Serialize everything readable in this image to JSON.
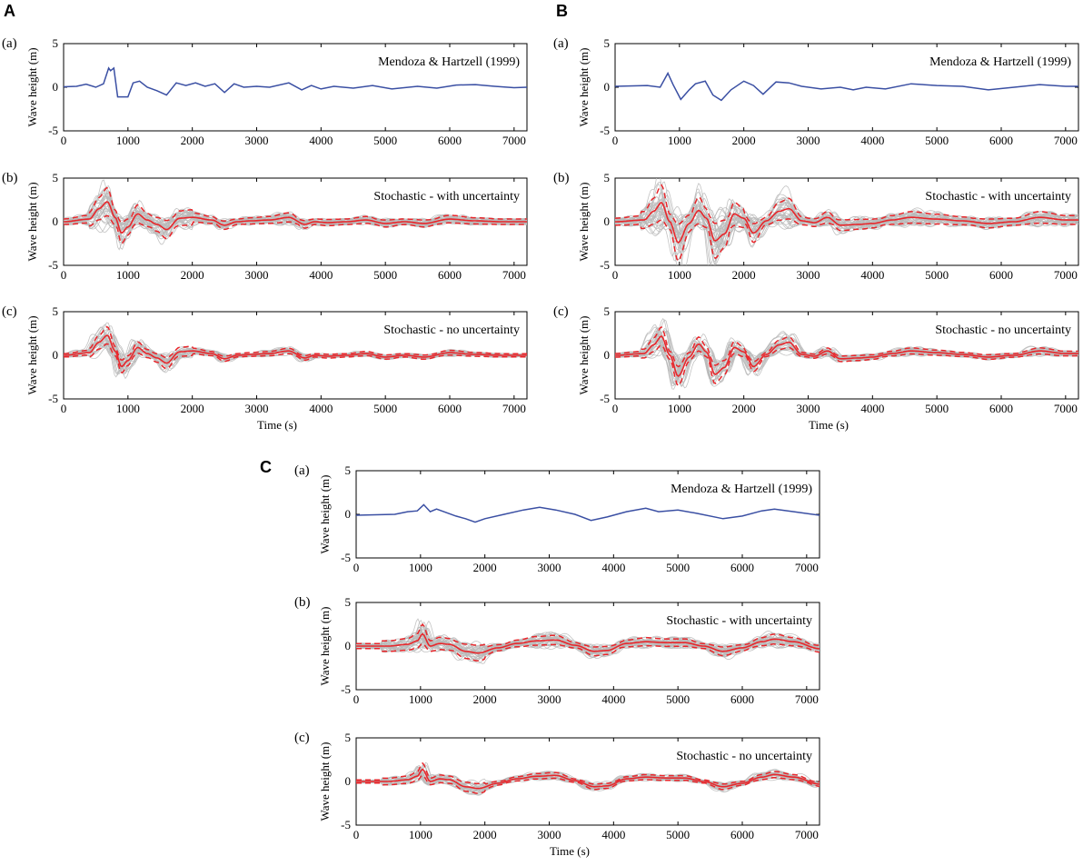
{
  "figure": {
    "panels": [
      {
        "letter": "A"
      },
      {
        "letter": "B"
      },
      {
        "letter": "C"
      }
    ],
    "rows": [
      {
        "label": "(a)",
        "legend": "Mendoza & Hartzell (1999)"
      },
      {
        "label": "(b)",
        "legend": "Stochastic - with uncertainty"
      },
      {
        "label": "(c)",
        "legend": "Stochastic - no uncertainty"
      }
    ],
    "colors": {
      "observed": "#3a4fa3",
      "mean": "#e8262b",
      "ensemble": "#b9b9b9"
    }
  },
  "chart_data": {
    "type": "line",
    "xlabel": "Time (s)",
    "ylabel": "Wave height (m)",
    "xlim": [
      0,
      7200
    ],
    "ylim": [
      -5,
      5
    ],
    "xticks": [
      0,
      1000,
      2000,
      3000,
      4000,
      5000,
      6000,
      7000
    ],
    "yticks": [
      5,
      0,
      -5
    ],
    "grid": false,
    "series_description": {
      "a": "single deterministic waveform (Mendoza & Hartzell 1999)",
      "b": "ensemble of stochastic realizations (grey) with mean (solid red) and mean ± 1 sd (dashed red)",
      "c": "ensemble of stochastic realizations (grey) with mean (solid red) and mean ± 1 sd (dashed red)"
    },
    "panels": {
      "A": {
        "a_keypoints": [
          [
            0,
            0.05
          ],
          [
            200,
            0.1
          ],
          [
            350,
            0.35
          ],
          [
            500,
            0.0
          ],
          [
            620,
            0.4
          ],
          [
            700,
            2.2
          ],
          [
            730,
            1.9
          ],
          [
            780,
            2.2
          ],
          [
            840,
            -1.1
          ],
          [
            900,
            -1.1
          ],
          [
            1000,
            -1.1
          ],
          [
            1080,
            0.5
          ],
          [
            1180,
            0.7
          ],
          [
            1300,
            0.0
          ],
          [
            1450,
            -0.4
          ],
          [
            1600,
            -0.9
          ],
          [
            1750,
            0.5
          ],
          [
            1900,
            0.2
          ],
          [
            2050,
            0.5
          ],
          [
            2200,
            0.1
          ],
          [
            2350,
            0.4
          ],
          [
            2500,
            -0.6
          ],
          [
            2650,
            0.4
          ],
          [
            2800,
            0.0
          ],
          [
            3000,
            0.1
          ],
          [
            3200,
            0.0
          ],
          [
            3500,
            0.5
          ],
          [
            3700,
            -0.3
          ],
          [
            3850,
            0.2
          ],
          [
            4000,
            -0.2
          ],
          [
            4200,
            0.1
          ],
          [
            4500,
            -0.1
          ],
          [
            4800,
            0.2
          ],
          [
            5100,
            -0.2
          ],
          [
            5500,
            0.1
          ],
          [
            5800,
            -0.1
          ],
          [
            6100,
            0.25
          ],
          [
            6400,
            0.3
          ],
          [
            6700,
            0.1
          ],
          [
            7000,
            -0.05
          ],
          [
            7200,
            0.0
          ]
        ],
        "mean_keypoints": [
          [
            0,
            0.0
          ],
          [
            400,
            0.3
          ],
          [
            550,
            1.5
          ],
          [
            680,
            2.3
          ],
          [
            800,
            0.5
          ],
          [
            900,
            -1.3
          ],
          [
            1000,
            -0.6
          ],
          [
            1150,
            0.9
          ],
          [
            1300,
            0.2
          ],
          [
            1450,
            -0.3
          ],
          [
            1600,
            -0.9
          ],
          [
            1800,
            0.4
          ],
          [
            2000,
            0.5
          ],
          [
            2300,
            0.2
          ],
          [
            2500,
            -0.4
          ],
          [
            2700,
            0.0
          ],
          [
            2900,
            0.1
          ],
          [
            3200,
            0.2
          ],
          [
            3500,
            0.5
          ],
          [
            3750,
            -0.3
          ],
          [
            3900,
            0.0
          ],
          [
            4100,
            -0.1
          ],
          [
            4400,
            0.0
          ],
          [
            4700,
            0.2
          ],
          [
            5000,
            -0.2
          ],
          [
            5300,
            0.0
          ],
          [
            5600,
            -0.2
          ],
          [
            6000,
            0.3
          ],
          [
            6400,
            0.1
          ],
          [
            6800,
            0.0
          ],
          [
            7200,
            0.0
          ]
        ],
        "b_sd": 0.9,
        "c_sd": 0.55
      },
      "B": {
        "a_keypoints": [
          [
            0,
            0.1
          ],
          [
            500,
            0.2
          ],
          [
            700,
            0.0
          ],
          [
            820,
            1.6
          ],
          [
            900,
            0.3
          ],
          [
            1020,
            -1.4
          ],
          [
            1150,
            -0.3
          ],
          [
            1250,
            0.4
          ],
          [
            1400,
            0.7
          ],
          [
            1520,
            -0.9
          ],
          [
            1650,
            -1.5
          ],
          [
            1800,
            -0.3
          ],
          [
            2000,
            0.7
          ],
          [
            2150,
            0.2
          ],
          [
            2300,
            -0.8
          ],
          [
            2500,
            0.6
          ],
          [
            2700,
            0.5
          ],
          [
            2900,
            0.1
          ],
          [
            3200,
            -0.2
          ],
          [
            3500,
            0.0
          ],
          [
            3700,
            -0.3
          ],
          [
            3900,
            0.0
          ],
          [
            4200,
            -0.2
          ],
          [
            4600,
            0.4
          ],
          [
            5000,
            0.2
          ],
          [
            5400,
            0.1
          ],
          [
            5800,
            -0.3
          ],
          [
            6200,
            0.0
          ],
          [
            6600,
            0.3
          ],
          [
            7000,
            0.1
          ],
          [
            7200,
            0.1
          ]
        ],
        "mean_keypoints": [
          [
            0,
            0.0
          ],
          [
            450,
            0.2
          ],
          [
            600,
            1.2
          ],
          [
            720,
            2.2
          ],
          [
            850,
            0.0
          ],
          [
            980,
            -2.4
          ],
          [
            1150,
            -0.2
          ],
          [
            1300,
            1.3
          ],
          [
            1420,
            0.4
          ],
          [
            1550,
            -2.2
          ],
          [
            1700,
            -1.4
          ],
          [
            1850,
            0.9
          ],
          [
            2000,
            0.4
          ],
          [
            2150,
            -1.3
          ],
          [
            2350,
            0.1
          ],
          [
            2550,
            1.2
          ],
          [
            2700,
            1.5
          ],
          [
            2900,
            0.1
          ],
          [
            3100,
            -0.1
          ],
          [
            3300,
            0.5
          ],
          [
            3500,
            -0.4
          ],
          [
            3800,
            -0.3
          ],
          [
            4000,
            -0.2
          ],
          [
            4300,
            0.2
          ],
          [
            4600,
            0.5
          ],
          [
            5000,
            0.3
          ],
          [
            5400,
            0.1
          ],
          [
            5800,
            -0.2
          ],
          [
            6200,
            0.0
          ],
          [
            6600,
            0.5
          ],
          [
            7000,
            0.2
          ],
          [
            7200,
            0.2
          ]
        ],
        "b_sd": 1.15,
        "c_sd": 0.6
      },
      "C": {
        "a_keypoints": [
          [
            0,
            -0.1
          ],
          [
            600,
            0.0
          ],
          [
            800,
            0.3
          ],
          [
            950,
            0.4
          ],
          [
            1050,
            1.1
          ],
          [
            1150,
            0.3
          ],
          [
            1250,
            0.6
          ],
          [
            1400,
            0.2
          ],
          [
            1550,
            -0.2
          ],
          [
            1700,
            -0.5
          ],
          [
            1850,
            -0.9
          ],
          [
            2000,
            -0.5
          ],
          [
            2300,
            0.0
          ],
          [
            2600,
            0.5
          ],
          [
            2850,
            0.8
          ],
          [
            3100,
            0.5
          ],
          [
            3400,
            0.0
          ],
          [
            3650,
            -0.7
          ],
          [
            3900,
            -0.3
          ],
          [
            4200,
            0.3
          ],
          [
            4500,
            0.7
          ],
          [
            4700,
            0.3
          ],
          [
            5000,
            0.5
          ],
          [
            5300,
            0.1
          ],
          [
            5700,
            -0.5
          ],
          [
            6000,
            -0.2
          ],
          [
            6300,
            0.4
          ],
          [
            6500,
            0.6
          ],
          [
            6800,
            0.3
          ],
          [
            7200,
            -0.1
          ]
        ],
        "mean_keypoints": [
          [
            0,
            0.0
          ],
          [
            500,
            0.0
          ],
          [
            800,
            0.2
          ],
          [
            950,
            0.6
          ],
          [
            1030,
            1.4
          ],
          [
            1150,
            0.0
          ],
          [
            1300,
            0.3
          ],
          [
            1450,
            0.2
          ],
          [
            1700,
            -0.6
          ],
          [
            1900,
            -0.8
          ],
          [
            2200,
            -0.2
          ],
          [
            2500,
            0.3
          ],
          [
            2800,
            0.6
          ],
          [
            3100,
            0.7
          ],
          [
            3400,
            0.1
          ],
          [
            3700,
            -0.6
          ],
          [
            3900,
            -0.5
          ],
          [
            4200,
            0.3
          ],
          [
            4500,
            0.5
          ],
          [
            4800,
            0.4
          ],
          [
            5100,
            0.4
          ],
          [
            5400,
            0.0
          ],
          [
            5700,
            -0.6
          ],
          [
            6000,
            -0.2
          ],
          [
            6300,
            0.5
          ],
          [
            6500,
            0.8
          ],
          [
            6800,
            0.5
          ],
          [
            7200,
            -0.3
          ]
        ],
        "b_sd": 0.8,
        "c_sd": 0.5
      }
    }
  }
}
